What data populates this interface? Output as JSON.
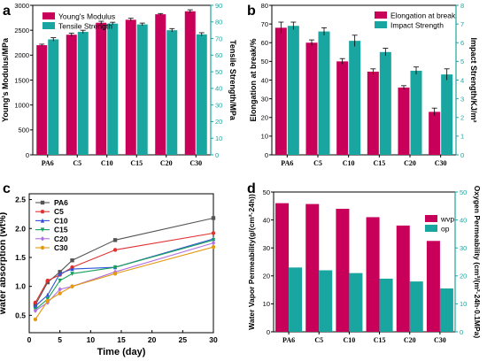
{
  "colors": {
    "primary": "#c8005a",
    "secondary": "#1aa6a0",
    "axis_right": "#1aa6a0"
  },
  "chart_data": [
    {
      "panel": "a",
      "type": "bar",
      "categories": [
        "PA6",
        "C5",
        "C10",
        "C15",
        "C20",
        "C30"
      ],
      "ylabel": "Young's Modulus/MPa",
      "ylim": [
        0,
        3000
      ],
      "yticks": [
        0,
        500,
        1000,
        1500,
        2000,
        2500,
        3000
      ],
      "y2label": "Tensile Strength/MPa",
      "y2lim": [
        0,
        90
      ],
      "y2ticks": [
        0,
        10,
        20,
        30,
        40,
        50,
        60,
        70,
        80,
        90
      ],
      "series": [
        {
          "name": "Young's Modulus",
          "axis": "left",
          "values": [
            2200,
            2410,
            2650,
            2710,
            2820,
            2880
          ],
          "errors": [
            20,
            30,
            30,
            30,
            15,
            30
          ]
        },
        {
          "name": "Tensile Strength",
          "axis": "right",
          "values": [
            69.5,
            74,
            79,
            78.5,
            75,
            72.5
          ],
          "errors": [
            1,
            1,
            0.8,
            0.8,
            1,
            1
          ]
        }
      ],
      "legend": "top-left"
    },
    {
      "panel": "b",
      "type": "bar",
      "categories": [
        "PA6",
        "C5",
        "C10",
        "C15",
        "C20",
        "C30"
      ],
      "ylabel": "Elongation at break/%",
      "ylim": [
        0,
        80
      ],
      "yticks": [
        0,
        10,
        20,
        30,
        40,
        50,
        60,
        70,
        80
      ],
      "y2label": "Impact Strength/KJ/m²",
      "y2lim": [
        0,
        8
      ],
      "y2ticks": [
        0,
        1,
        2,
        3,
        4,
        5,
        6,
        7,
        8
      ],
      "series": [
        {
          "name": "Elongation at break",
          "axis": "left",
          "values": [
            68,
            60,
            50,
            44.5,
            36,
            23
          ],
          "errors": [
            3,
            1.5,
            1.5,
            1.5,
            1,
            2
          ]
        },
        {
          "name": "Impact Strength",
          "axis": "right",
          "values": [
            6.9,
            6.6,
            6.1,
            5.5,
            4.5,
            4.3
          ],
          "errors": [
            0.2,
            0.2,
            0.3,
            0.2,
            0.2,
            0.3
          ]
        }
      ],
      "legend": "top-right"
    },
    {
      "panel": "c",
      "type": "line",
      "xlabel": "Time (day)",
      "ylabel": "water absorption (wt%)",
      "xlim": [
        0,
        30
      ],
      "xticks": [
        0,
        5,
        10,
        15,
        20,
        25,
        30
      ],
      "ylim": [
        0.2,
        2.6
      ],
      "yticks": [
        0.5,
        1.0,
        1.5,
        2.0,
        2.5
      ],
      "ytick_labels": [
        "0.5",
        "1.0",
        "1.5",
        "2.0",
        "2.5"
      ],
      "x": [
        1,
        3,
        5,
        7,
        14,
        30
      ],
      "series": [
        {
          "name": "PA6",
          "color": "#555555",
          "marker": "square",
          "values": [
            0.68,
            1.07,
            1.25,
            1.45,
            1.8,
            2.18
          ]
        },
        {
          "name": "C5",
          "color": "#e03030",
          "marker": "circle",
          "values": [
            0.72,
            1.1,
            1.2,
            1.33,
            1.63,
            1.92
          ]
        },
        {
          "name": "C10",
          "color": "#2f52d8",
          "marker": "triangle",
          "values": [
            0.66,
            0.85,
            1.22,
            1.3,
            1.33,
            1.82
          ]
        },
        {
          "name": "C15",
          "color": "#16a05a",
          "marker": "triangle-down",
          "values": [
            0.6,
            0.78,
            1.1,
            1.22,
            1.33,
            1.8
          ]
        },
        {
          "name": "C20",
          "color": "#b070e0",
          "marker": "diamond",
          "values": [
            0.58,
            0.72,
            0.95,
            1.0,
            1.25,
            1.75
          ]
        },
        {
          "name": "C30",
          "color": "#e39a10",
          "marker": "circle",
          "values": [
            0.43,
            0.75,
            0.88,
            1.0,
            1.22,
            1.68
          ]
        }
      ],
      "legend": "top-left"
    },
    {
      "panel": "d",
      "type": "bar",
      "categories": [
        "PA6",
        "C5",
        "C10",
        "C15",
        "C20",
        "C30"
      ],
      "ylabel": "Water Vapor Permeability(g/(cm²·24h))",
      "ylim": [
        0,
        50
      ],
      "yticks": [
        0,
        10,
        20,
        30,
        40,
        50
      ],
      "y2label": "Oxygen Permeability (cm³/(m²·24h·0.1MPa)",
      "y2lim": [
        0,
        50
      ],
      "y2ticks": [
        0,
        10,
        20,
        30,
        40,
        50
      ],
      "series": [
        {
          "name": "wvp",
          "axis": "left",
          "values": [
            46,
            45.7,
            44,
            41,
            38,
            32.5
          ]
        },
        {
          "name": "op",
          "axis": "right",
          "values": [
            23,
            22,
            21,
            19,
            18,
            15.5
          ]
        }
      ],
      "legend": "top-right"
    }
  ],
  "panels": [
    {
      "label": "a"
    },
    {
      "label": "b"
    },
    {
      "label": "c"
    },
    {
      "label": "d"
    }
  ]
}
